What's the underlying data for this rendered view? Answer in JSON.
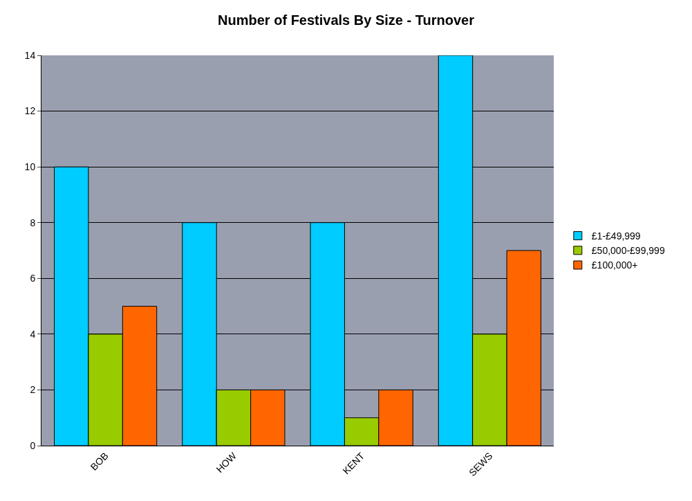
{
  "chart_data": {
    "type": "bar",
    "title": "Number of Festivals By Size - Turnover",
    "categories": [
      "BOB",
      "HOW",
      "KENT",
      "SEWS"
    ],
    "series": [
      {
        "name": "£1-£49,999",
        "color": "#00ccff",
        "values": [
          10,
          8,
          8,
          14
        ]
      },
      {
        "name": "£50,000-£99,999",
        "color": "#99cc00",
        "values": [
          4,
          2,
          1,
          4
        ]
      },
      {
        "name": "£100,000+",
        "color": "#ff6600",
        "values": [
          5,
          2,
          2,
          7
        ]
      }
    ],
    "ylim": [
      0,
      14
    ],
    "yticks": [
      0,
      2,
      4,
      6,
      8,
      10,
      12,
      14
    ],
    "grid": "y",
    "legend": "right"
  }
}
